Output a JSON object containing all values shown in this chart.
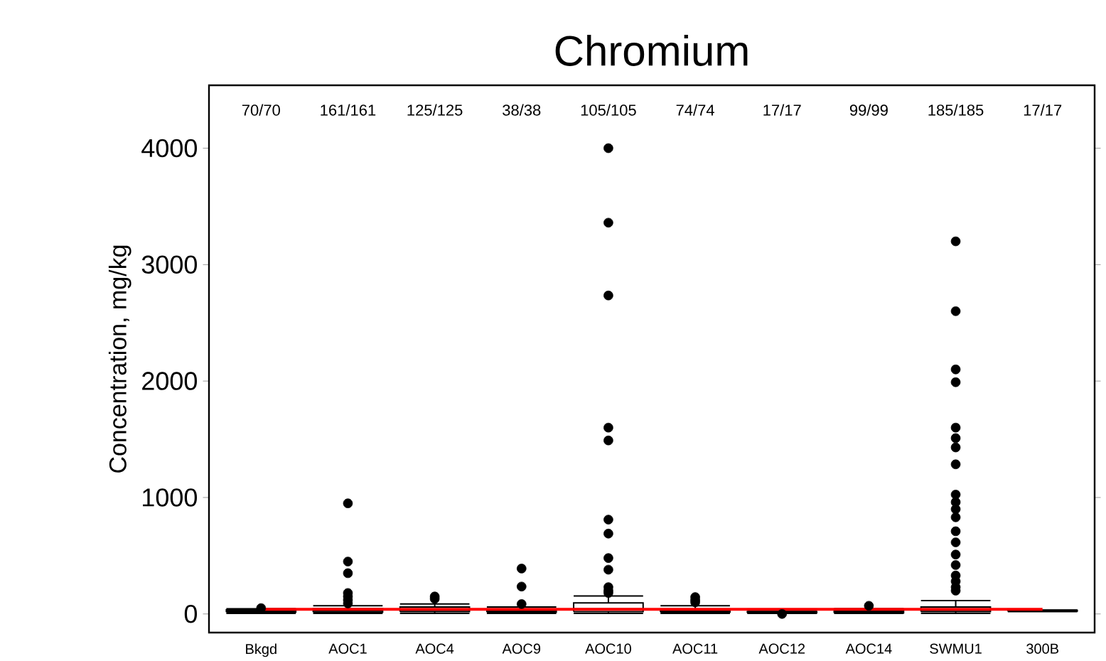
{
  "chart_data": {
    "type": "box",
    "title": "Chromium",
    "ylabel": "Concentration, mg/kg",
    "color": "#000000",
    "marker": "circle",
    "categories": [
      "Bkgd",
      "AOC1",
      "AOC4",
      "AOC9",
      "AOC10",
      "AOC11",
      "AOC12",
      "AOC14",
      "SWMU1",
      "300B"
    ],
    "boxes": [
      {
        "low": 5,
        "q1": 15,
        "median": 25,
        "q3": 35,
        "high": 45,
        "outliers": [
          50
        ]
      },
      {
        "low": 5,
        "q1": 15,
        "median": 30,
        "q3": 45,
        "high": 70,
        "outliers": [
          950,
          450,
          350,
          180,
          150,
          120,
          90
        ]
      },
      {
        "low": 5,
        "q1": 20,
        "median": 35,
        "q3": 60,
        "high": 85,
        "outliers": [
          150,
          130
        ]
      },
      {
        "low": 5,
        "q1": 15,
        "median": 25,
        "q3": 40,
        "high": 60,
        "outliers": [
          390,
          235,
          85
        ]
      },
      {
        "low": 5,
        "q1": 20,
        "median": 40,
        "q3": 95,
        "high": 155,
        "outliers": [
          4000,
          3360,
          2735,
          1600,
          1490,
          810,
          690,
          480,
          380,
          230,
          200,
          180
        ]
      },
      {
        "low": 5,
        "q1": 15,
        "median": 25,
        "q3": 40,
        "high": 70,
        "outliers": [
          145,
          120,
          100
        ]
      },
      {
        "low": 5,
        "q1": 10,
        "median": 15,
        "q3": 20,
        "high": 30,
        "outliers": [
          0
        ]
      },
      {
        "low": 5,
        "q1": 10,
        "median": 20,
        "q3": 30,
        "high": 45,
        "outliers": [
          70
        ]
      },
      {
        "low": 5,
        "q1": 20,
        "median": 35,
        "q3": 60,
        "high": 115,
        "outliers": [
          3200,
          2600,
          2100,
          1990,
          1600,
          1510,
          1430,
          1285,
          1025,
          960,
          900,
          830,
          710,
          615,
          510,
          420,
          330,
          280,
          230,
          200
        ]
      },
      {
        "low": 20,
        "q1": 25,
        "median": 28,
        "q3": 30,
        "high": 32
      }
    ],
    "ylim": [
      -160,
      4540
    ],
    "yticks": [
      0,
      1000,
      2000,
      3000,
      4000
    ],
    "ref_lines": [
      {
        "axis": "y",
        "value": 40,
        "color": "#ff0000"
      }
    ],
    "annotations": [
      "70/70",
      "161/161",
      "125/125",
      "38/38",
      "105/105",
      "74/74",
      "17/17",
      "99/99",
      "185/185",
      "17/17"
    ]
  }
}
